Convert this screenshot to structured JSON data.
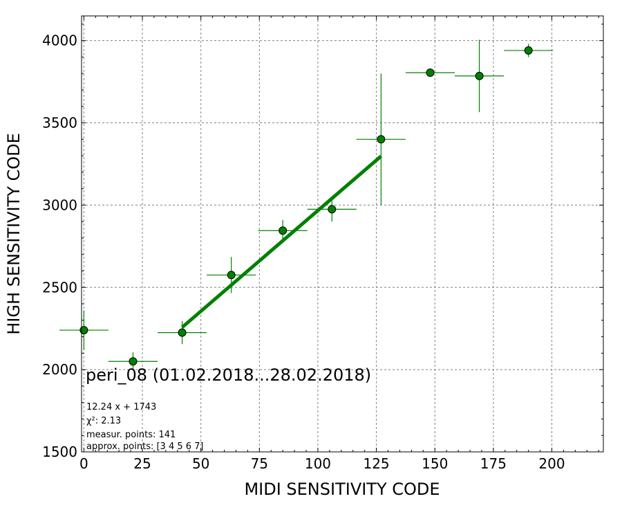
{
  "chart_data": {
    "type": "scatter",
    "xlabel": "MIDI SENSITIVITY CODE",
    "ylabel": "HIGH SENSITIVITY CODE",
    "xlim": [
      -1,
      222
    ],
    "ylim": [
      1500,
      4150
    ],
    "xticks": [
      0,
      25,
      50,
      75,
      100,
      125,
      150,
      175,
      200
    ],
    "yticks": [
      1500,
      2000,
      2500,
      3000,
      3500,
      4000
    ],
    "grid": true,
    "point_color": "#008000",
    "line_color": "#008000",
    "points": [
      {
        "x": 0,
        "y": 2240,
        "xerr": 10.5,
        "yerr": 120
      },
      {
        "x": 21,
        "y": 2050,
        "xerr": 10.5,
        "yerr": 55
      },
      {
        "x": 42,
        "y": 2225,
        "xerr": 10.5,
        "yerr": 70
      },
      {
        "x": 63,
        "y": 2575,
        "xerr": 10.5,
        "yerr": 110
      },
      {
        "x": 85,
        "y": 2845,
        "xerr": 10.5,
        "yerr": 65
      },
      {
        "x": 106,
        "y": 2975,
        "xerr": 10.5,
        "yerr": 75
      },
      {
        "x": 127,
        "y": 3400,
        "xerr": 10.5,
        "yerr": 400
      },
      {
        "x": 148,
        "y": 3805,
        "xerr": 10.5,
        "yerr": 15
      },
      {
        "x": 169,
        "y": 3785,
        "xerr": 10.5,
        "yerr": 220
      },
      {
        "x": 190,
        "y": 3940,
        "xerr": 10.5,
        "yerr": 40
      }
    ],
    "fit": {
      "slope": 12.24,
      "intercept": 1743,
      "x_range": [
        42,
        127
      ]
    },
    "annotation": {
      "title": "peri_08 (01.02.2018...28.02.2018)",
      "equation": "12.24 x + 1743",
      "chi2_label": "χ²: 2.13",
      "measur_points": "measur. points: 141",
      "approx_points": "approx. points: [3 4 5 6 7]"
    }
  }
}
